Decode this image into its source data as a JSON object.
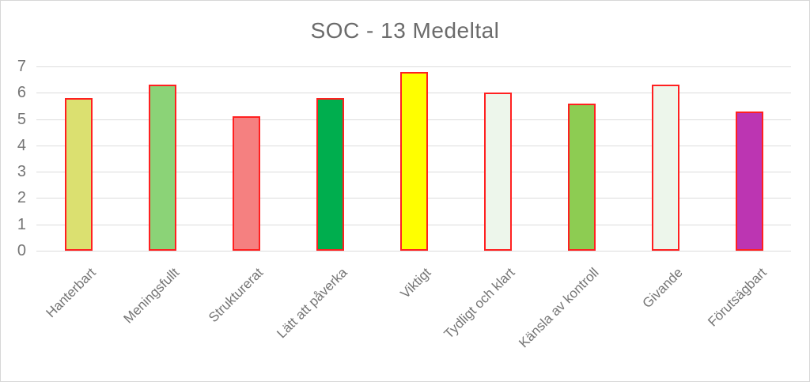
{
  "chart": {
    "title": "SOC - 13 Medeltal"
  },
  "chart_data": {
    "type": "bar",
    "title": "SOC - 13 Medeltal",
    "categories": [
      "Hanterbart",
      "Meningsfullt",
      "Strukturerat",
      "Lätt att påverka",
      "Viktigt",
      "Tydligt och klart",
      "Känsla av kontroll",
      "Givande",
      "Förutsägbart"
    ],
    "values": [
      5.8,
      6.3,
      5.1,
      5.8,
      6.8,
      6.0,
      5.6,
      6.3,
      5.3
    ],
    "bar_colors": [
      "#DBE070",
      "#8BD377",
      "#F58080",
      "#00AE4E",
      "#FFFF00",
      "#EDF6EB",
      "#8DCC52",
      "#EDF6EB",
      "#BC35B2"
    ],
    "bar_border_color": "#FF2020",
    "xlabel": "",
    "ylabel": "",
    "ylim": [
      0,
      7
    ],
    "yticks": [
      0,
      1,
      2,
      3,
      4,
      5,
      6,
      7
    ],
    "grid": true,
    "legend": false,
    "gridline_color": "#DCDCDC",
    "axis_label_color": "#757575",
    "title_color": "#6B6B6B",
    "background_color": "#FFFFFF"
  }
}
